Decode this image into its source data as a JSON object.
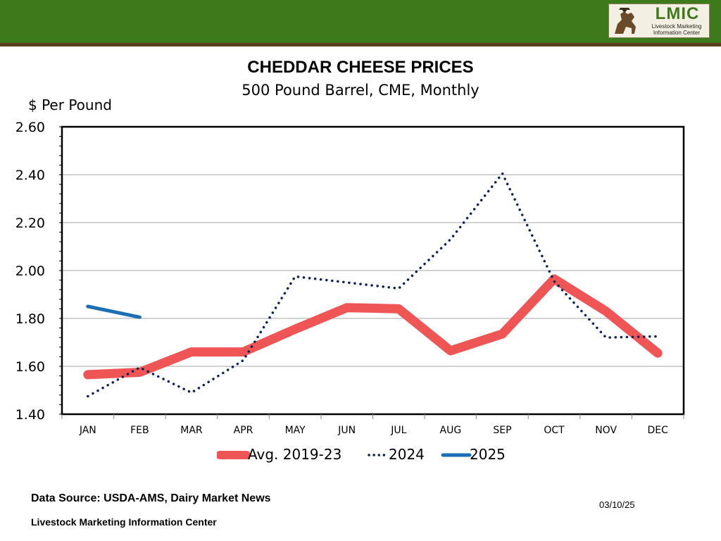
{
  "header": {
    "logo_brand": "LMIC",
    "logo_line1": "Livestock Marketing",
    "logo_line2": "Information Center",
    "icon": "cowboy-horse-icon"
  },
  "chart_data": {
    "type": "line",
    "title": "CHEDDAR CHEESE PRICES",
    "subtitle": "500 Pound Barrel, CME, Monthly",
    "ylabel": "$ Per Pound",
    "xlabel": "",
    "ylim": [
      1.4,
      2.6
    ],
    "yticks": [
      "1.40",
      "1.60",
      "1.80",
      "2.00",
      "2.20",
      "2.40",
      "2.60"
    ],
    "categories": [
      "JAN",
      "FEB",
      "MAR",
      "APR",
      "MAY",
      "JUN",
      "JUL",
      "AUG",
      "SEP",
      "OCT",
      "NOV",
      "DEC"
    ],
    "grid": true,
    "legend_position": "bottom",
    "series": [
      {
        "name": "Avg. 2019-23",
        "style": "thick-solid",
        "color": "#f05555",
        "values": [
          1.565,
          1.575,
          1.66,
          1.66,
          1.755,
          1.845,
          1.84,
          1.665,
          1.735,
          1.965,
          1.83,
          1.655
        ]
      },
      {
        "name": "2024",
        "style": "dotted",
        "color": "#0f2152",
        "values": [
          1.475,
          1.595,
          1.49,
          1.625,
          1.975,
          1.95,
          1.925,
          2.13,
          2.405,
          1.955,
          1.72,
          1.725
        ]
      },
      {
        "name": "2025",
        "style": "solid",
        "color": "#1a6fb5",
        "values": [
          1.85,
          1.805,
          null,
          null,
          null,
          null,
          null,
          null,
          null,
          null,
          null,
          null
        ]
      }
    ]
  },
  "footer": {
    "source": "Data Source:  USDA-AMS, Dairy Market News",
    "organization": "Livestock Marketing Information Center",
    "date": "03/10/25"
  }
}
